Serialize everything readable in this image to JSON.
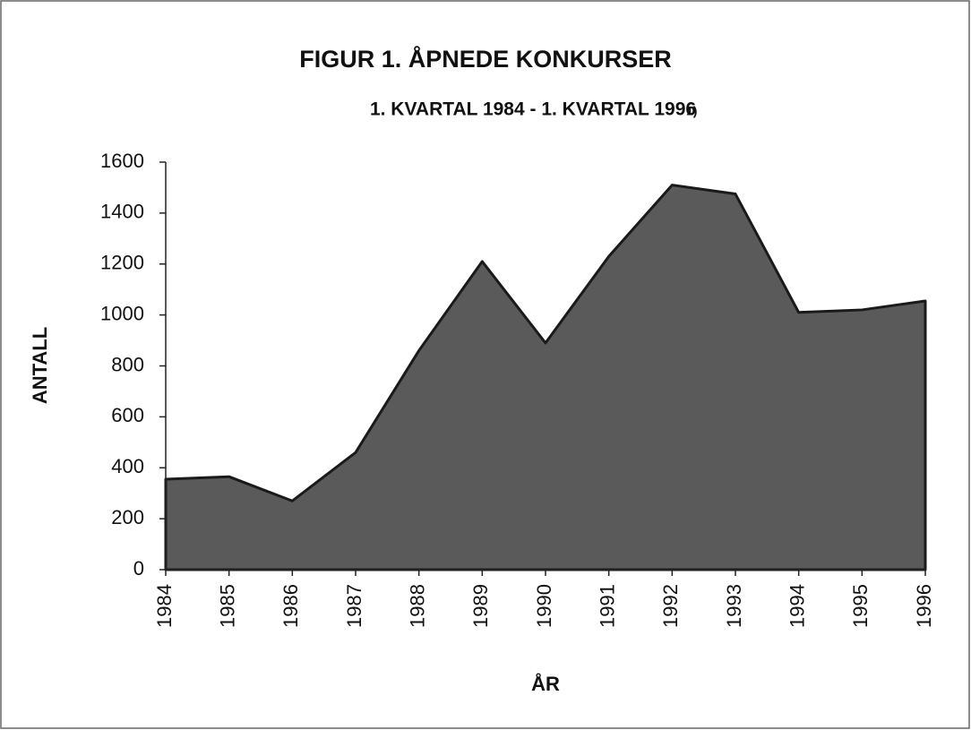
{
  "chart_data": {
    "type": "area",
    "title": "FIGUR 1. ÅPNEDE KONKURSER",
    "subtitle": "1. KVARTAL 1984 - 1. KVARTAL 1996",
    "footnote_marker": "1)",
    "ylabel": "ANTALL",
    "xlabel": "ÅR",
    "categories": [
      "1984",
      "1985",
      "1986",
      "1987",
      "1988",
      "1989",
      "1990",
      "1991",
      "1992",
      "1993",
      "1994",
      "1995",
      "1996"
    ],
    "values": [
      355,
      365,
      270,
      460,
      860,
      1210,
      890,
      1230,
      1510,
      1475,
      1010,
      1020,
      1055
    ],
    "color": "#5a5a5a",
    "ylim": [
      0,
      1600
    ],
    "yticks": [
      0,
      200,
      400,
      600,
      800,
      1000,
      1200,
      1400,
      1600
    ],
    "grid": false
  }
}
